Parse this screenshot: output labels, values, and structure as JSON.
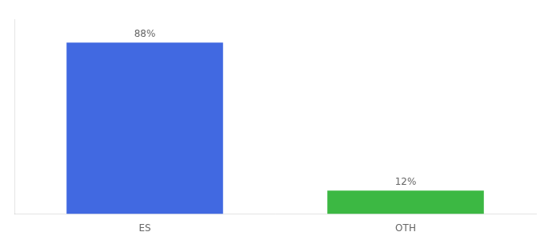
{
  "chart_data": {
    "type": "bar",
    "categories": [
      "ES",
      "OTH"
    ],
    "values": [
      88,
      12
    ],
    "colors": [
      "#4169e1",
      "#3cb843"
    ],
    "value_labels": [
      "88%",
      "12%"
    ],
    "data_labels": true,
    "ylim": [
      0,
      100
    ],
    "tick_labels": "x",
    "grid": false
  }
}
